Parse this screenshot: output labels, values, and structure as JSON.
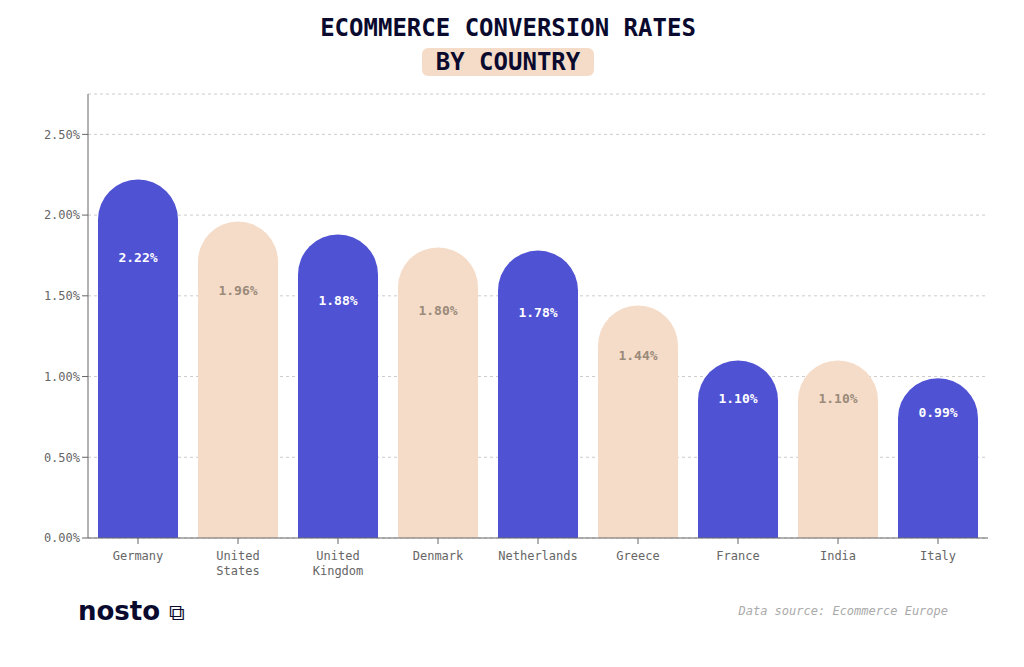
{
  "chart_data": {
    "type": "bar",
    "title": "ECOMMERCE CONVERSION RATES",
    "subtitle": "BY COUNTRY",
    "categories": [
      "Germany",
      "United\nStates",
      "United\nKingdom",
      "Denmark",
      "Netherlands",
      "Greece",
      "France",
      "India",
      "Italy"
    ],
    "values": [
      2.22,
      1.96,
      1.88,
      1.8,
      1.78,
      1.44,
      1.1,
      1.1,
      0.99
    ],
    "value_labels": [
      "2.22%",
      "1.96%",
      "1.88%",
      "1.80%",
      "1.78%",
      "1.44%",
      "1.10%",
      "1.10%",
      "0.99%"
    ],
    "colors": [
      "#4f52d3",
      "#f5dcc8",
      "#4f52d3",
      "#f5dcc8",
      "#4f52d3",
      "#f5dcc8",
      "#4f52d3",
      "#f5dcc8",
      "#4f52d3"
    ],
    "ylim": [
      0,
      2.75
    ],
    "yticks": [
      {
        "value": 0,
        "label": "0.00%"
      },
      {
        "value": 0.5,
        "label": "0.50%"
      },
      {
        "value": 1,
        "label": "1.00%"
      },
      {
        "value": 1.5,
        "label": "1.50%"
      },
      {
        "value": 2,
        "label": "2.00%"
      },
      {
        "value": 2.5,
        "label": "2.50%"
      }
    ],
    "grid": true,
    "data_labels": true,
    "annotations": [
      "nosto",
      "⧉",
      "Data source: Ecommerce Europe"
    ]
  }
}
